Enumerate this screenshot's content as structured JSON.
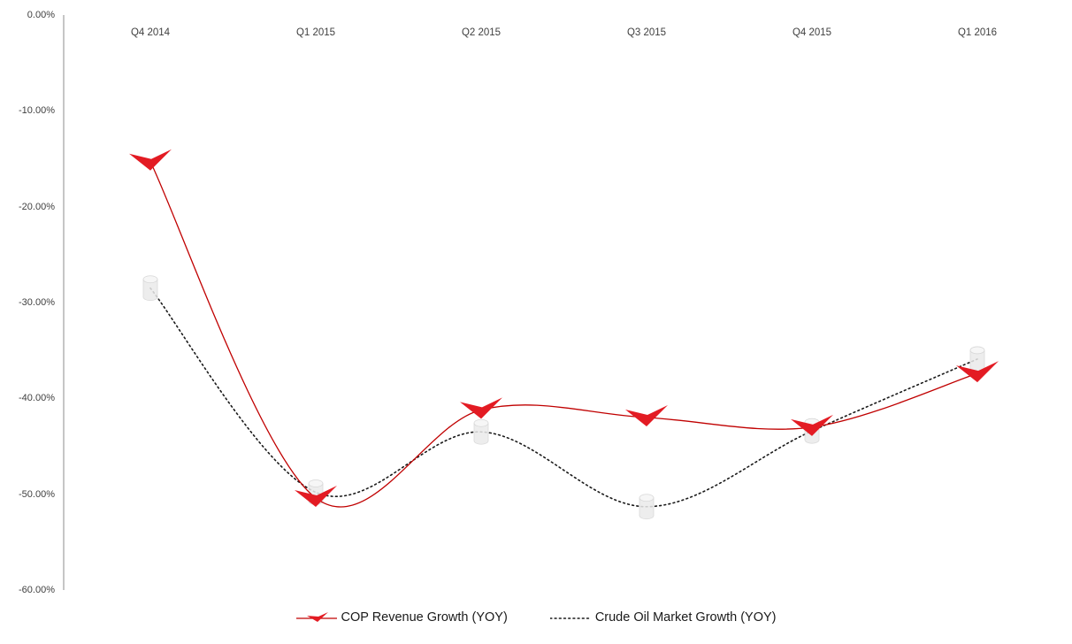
{
  "chart_data": {
    "type": "line",
    "title": "",
    "categories": [
      "Q4 2014",
      "Q1 2015",
      "Q2 2015",
      "Q3 2015",
      "Q4 2015",
      "Q1 2016"
    ],
    "series": [
      {
        "name": "COP Revenue Growth (YOY)",
        "values": [
          -15.3,
          -50.4,
          -41.2,
          -42.0,
          -43.0,
          -37.4
        ],
        "color": "#c00000",
        "marker_color": "#e31b23",
        "line_style": "solid-smooth",
        "marker": "red-swoosh-arrow"
      },
      {
        "name": "Crude Oil Market Growth (YOY)",
        "values": [
          -28.5,
          -49.8,
          -43.5,
          -51.3,
          -43.4,
          -35.9
        ],
        "color": "#1a1a1a",
        "marker_color": "#eaeaea",
        "line_style": "dotted-smooth",
        "marker": "gray-cylinder"
      }
    ],
    "xlabel": "",
    "ylabel": "",
    "ylim": [
      -60,
      0
    ],
    "ytick_labels": [
      "0.00%",
      "-10.00%",
      "-20.00%",
      "-30.00%",
      "-40.00%",
      "-50.00%",
      "-60.00%"
    ],
    "grid": false,
    "legend_position": "bottom",
    "axis_color": "#8c8c8c",
    "tick_label_color": "#404040"
  }
}
